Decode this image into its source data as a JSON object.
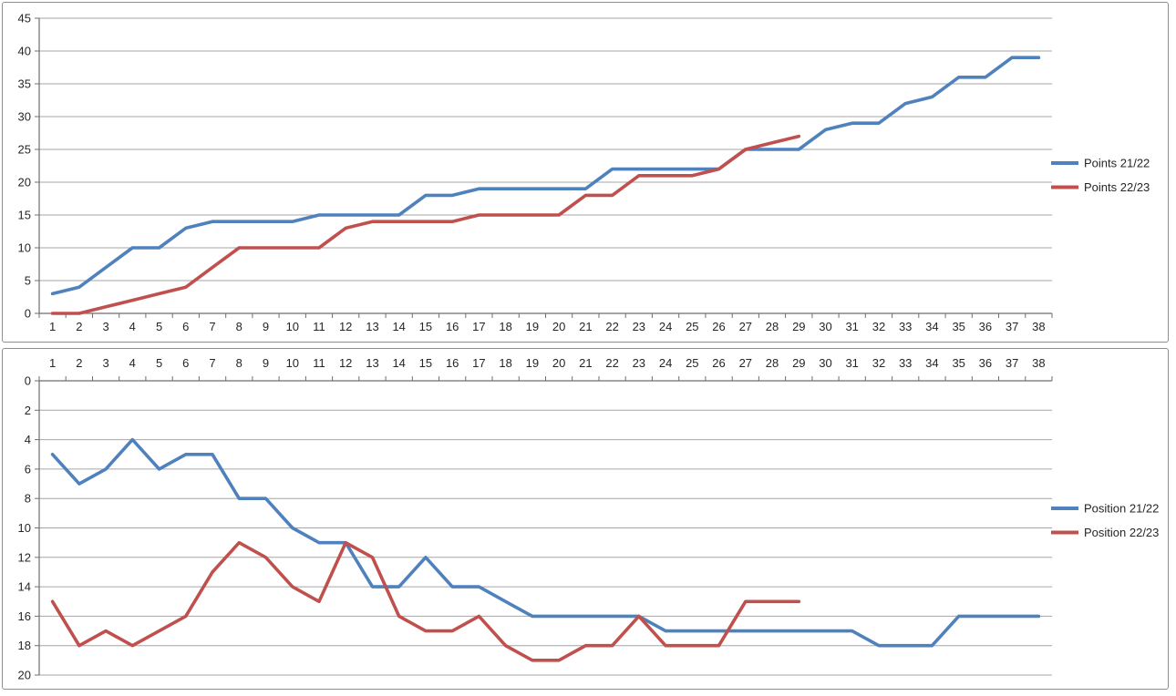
{
  "style": {
    "background": "#FFFFFF",
    "frame_border_color": "#8E8E8E",
    "grid_color": "#A6A6A6",
    "axis_color": "#6E6E6E",
    "label_color": "#262626",
    "series_blue": "#4F81BD",
    "series_red": "#C0504D"
  },
  "chart_data": [
    {
      "type": "line",
      "name": "points-by-matchweek",
      "title": "",
      "xlabel": "",
      "ylabel": "",
      "categories": [
        1,
        2,
        3,
        4,
        5,
        6,
        7,
        8,
        9,
        10,
        11,
        12,
        13,
        14,
        15,
        16,
        17,
        18,
        19,
        20,
        21,
        22,
        23,
        24,
        25,
        26,
        27,
        28,
        29,
        30,
        31,
        32,
        33,
        34,
        35,
        36,
        37,
        38
      ],
      "series": [
        {
          "name": "Points 21/22",
          "color": "#4F81BD",
          "values": [
            3,
            4,
            7,
            10,
            10,
            13,
            14,
            14,
            14,
            14,
            15,
            15,
            15,
            15,
            18,
            18,
            19,
            19,
            19,
            19,
            19,
            22,
            22,
            22,
            22,
            22,
            25,
            25,
            25,
            28,
            29,
            29,
            32,
            33,
            36,
            36,
            39,
            39
          ]
        },
        {
          "name": "Points 22/23",
          "color": "#C0504D",
          "values": [
            0,
            0,
            1,
            2,
            3,
            4,
            7,
            10,
            10,
            10,
            10,
            13,
            14,
            14,
            14,
            14,
            15,
            15,
            15,
            15,
            18,
            18,
            21,
            21,
            21,
            22,
            25,
            26,
            27
          ]
        }
      ],
      "ylim": [
        0,
        45
      ],
      "ytick_step": 5,
      "y_inverted": false,
      "x_axis_position": "bottom",
      "legend_position": "right",
      "grid": true
    },
    {
      "type": "line",
      "name": "position-by-matchweek",
      "title": "",
      "xlabel": "",
      "ylabel": "",
      "categories": [
        1,
        2,
        3,
        4,
        5,
        6,
        7,
        8,
        9,
        10,
        11,
        12,
        13,
        14,
        15,
        16,
        17,
        18,
        19,
        20,
        21,
        22,
        23,
        24,
        25,
        26,
        27,
        28,
        29,
        30,
        31,
        32,
        33,
        34,
        35,
        36,
        37,
        38
      ],
      "series": [
        {
          "name": "Position 21/22",
          "color": "#4F81BD",
          "values": [
            5,
            7,
            6,
            4,
            6,
            5,
            5,
            8,
            8,
            10,
            11,
            11,
            14,
            14,
            12,
            14,
            14,
            15,
            16,
            16,
            16,
            16,
            16,
            17,
            17,
            17,
            17,
            17,
            17,
            17,
            17,
            18,
            18,
            18,
            16,
            16,
            16,
            16
          ]
        },
        {
          "name": "Position 22/23",
          "color": "#C0504D",
          "values": [
            15,
            18,
            17,
            18,
            17,
            16,
            13,
            11,
            12,
            14,
            15,
            11,
            12,
            16,
            17,
            17,
            16,
            18,
            19,
            19,
            18,
            18,
            16,
            18,
            18,
            18,
            15,
            15,
            15
          ]
        }
      ],
      "ylim": [
        0,
        20
      ],
      "ytick_step": 2,
      "y_inverted": true,
      "x_axis_position": "top",
      "legend_position": "right",
      "grid": true
    }
  ]
}
